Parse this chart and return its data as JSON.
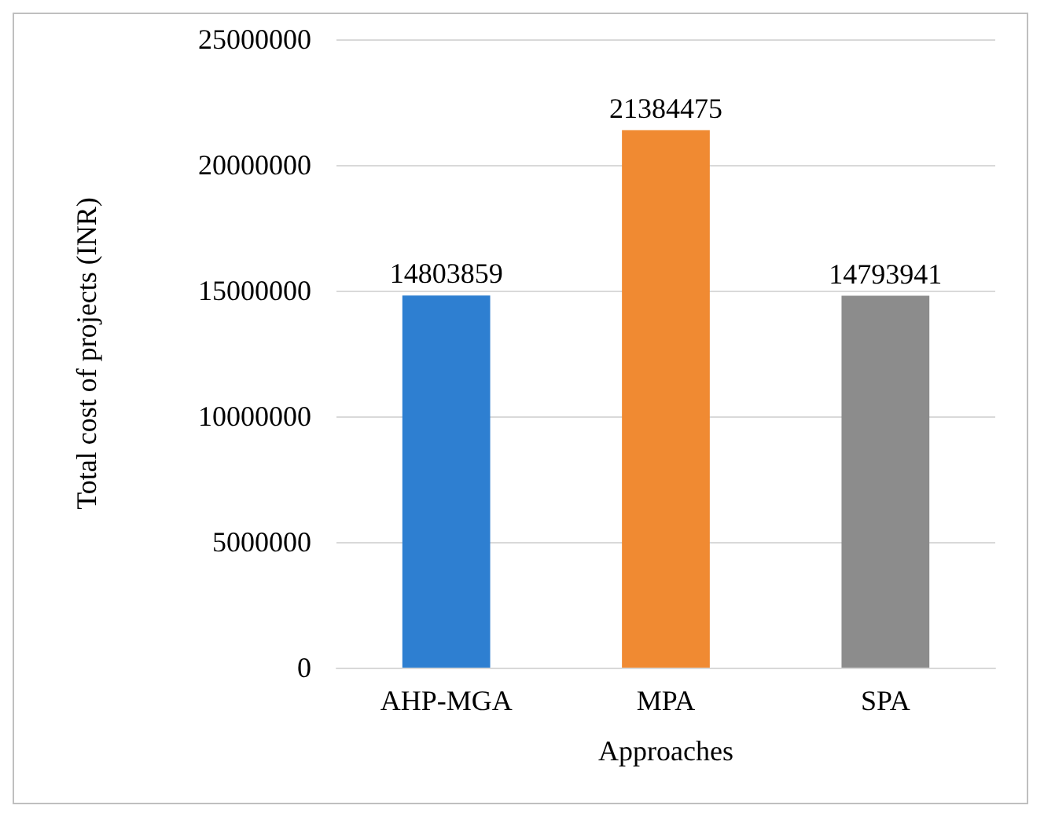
{
  "chart_data": {
    "type": "bar",
    "xlabel": "Approaches",
    "ylabel": "Total cost of projects (INR)",
    "categories": [
      "AHP-MGA",
      "MPA",
      "SPA"
    ],
    "values": [
      14803859,
      21384475,
      14793941
    ],
    "colors": [
      "#2e7fd1",
      "#f08a32",
      "#8c8c8c"
    ],
    "ylim": [
      0,
      25000000
    ],
    "yticks": [
      0,
      5000000,
      10000000,
      15000000,
      20000000,
      25000000
    ],
    "grid": "y",
    "data_labels": true
  }
}
